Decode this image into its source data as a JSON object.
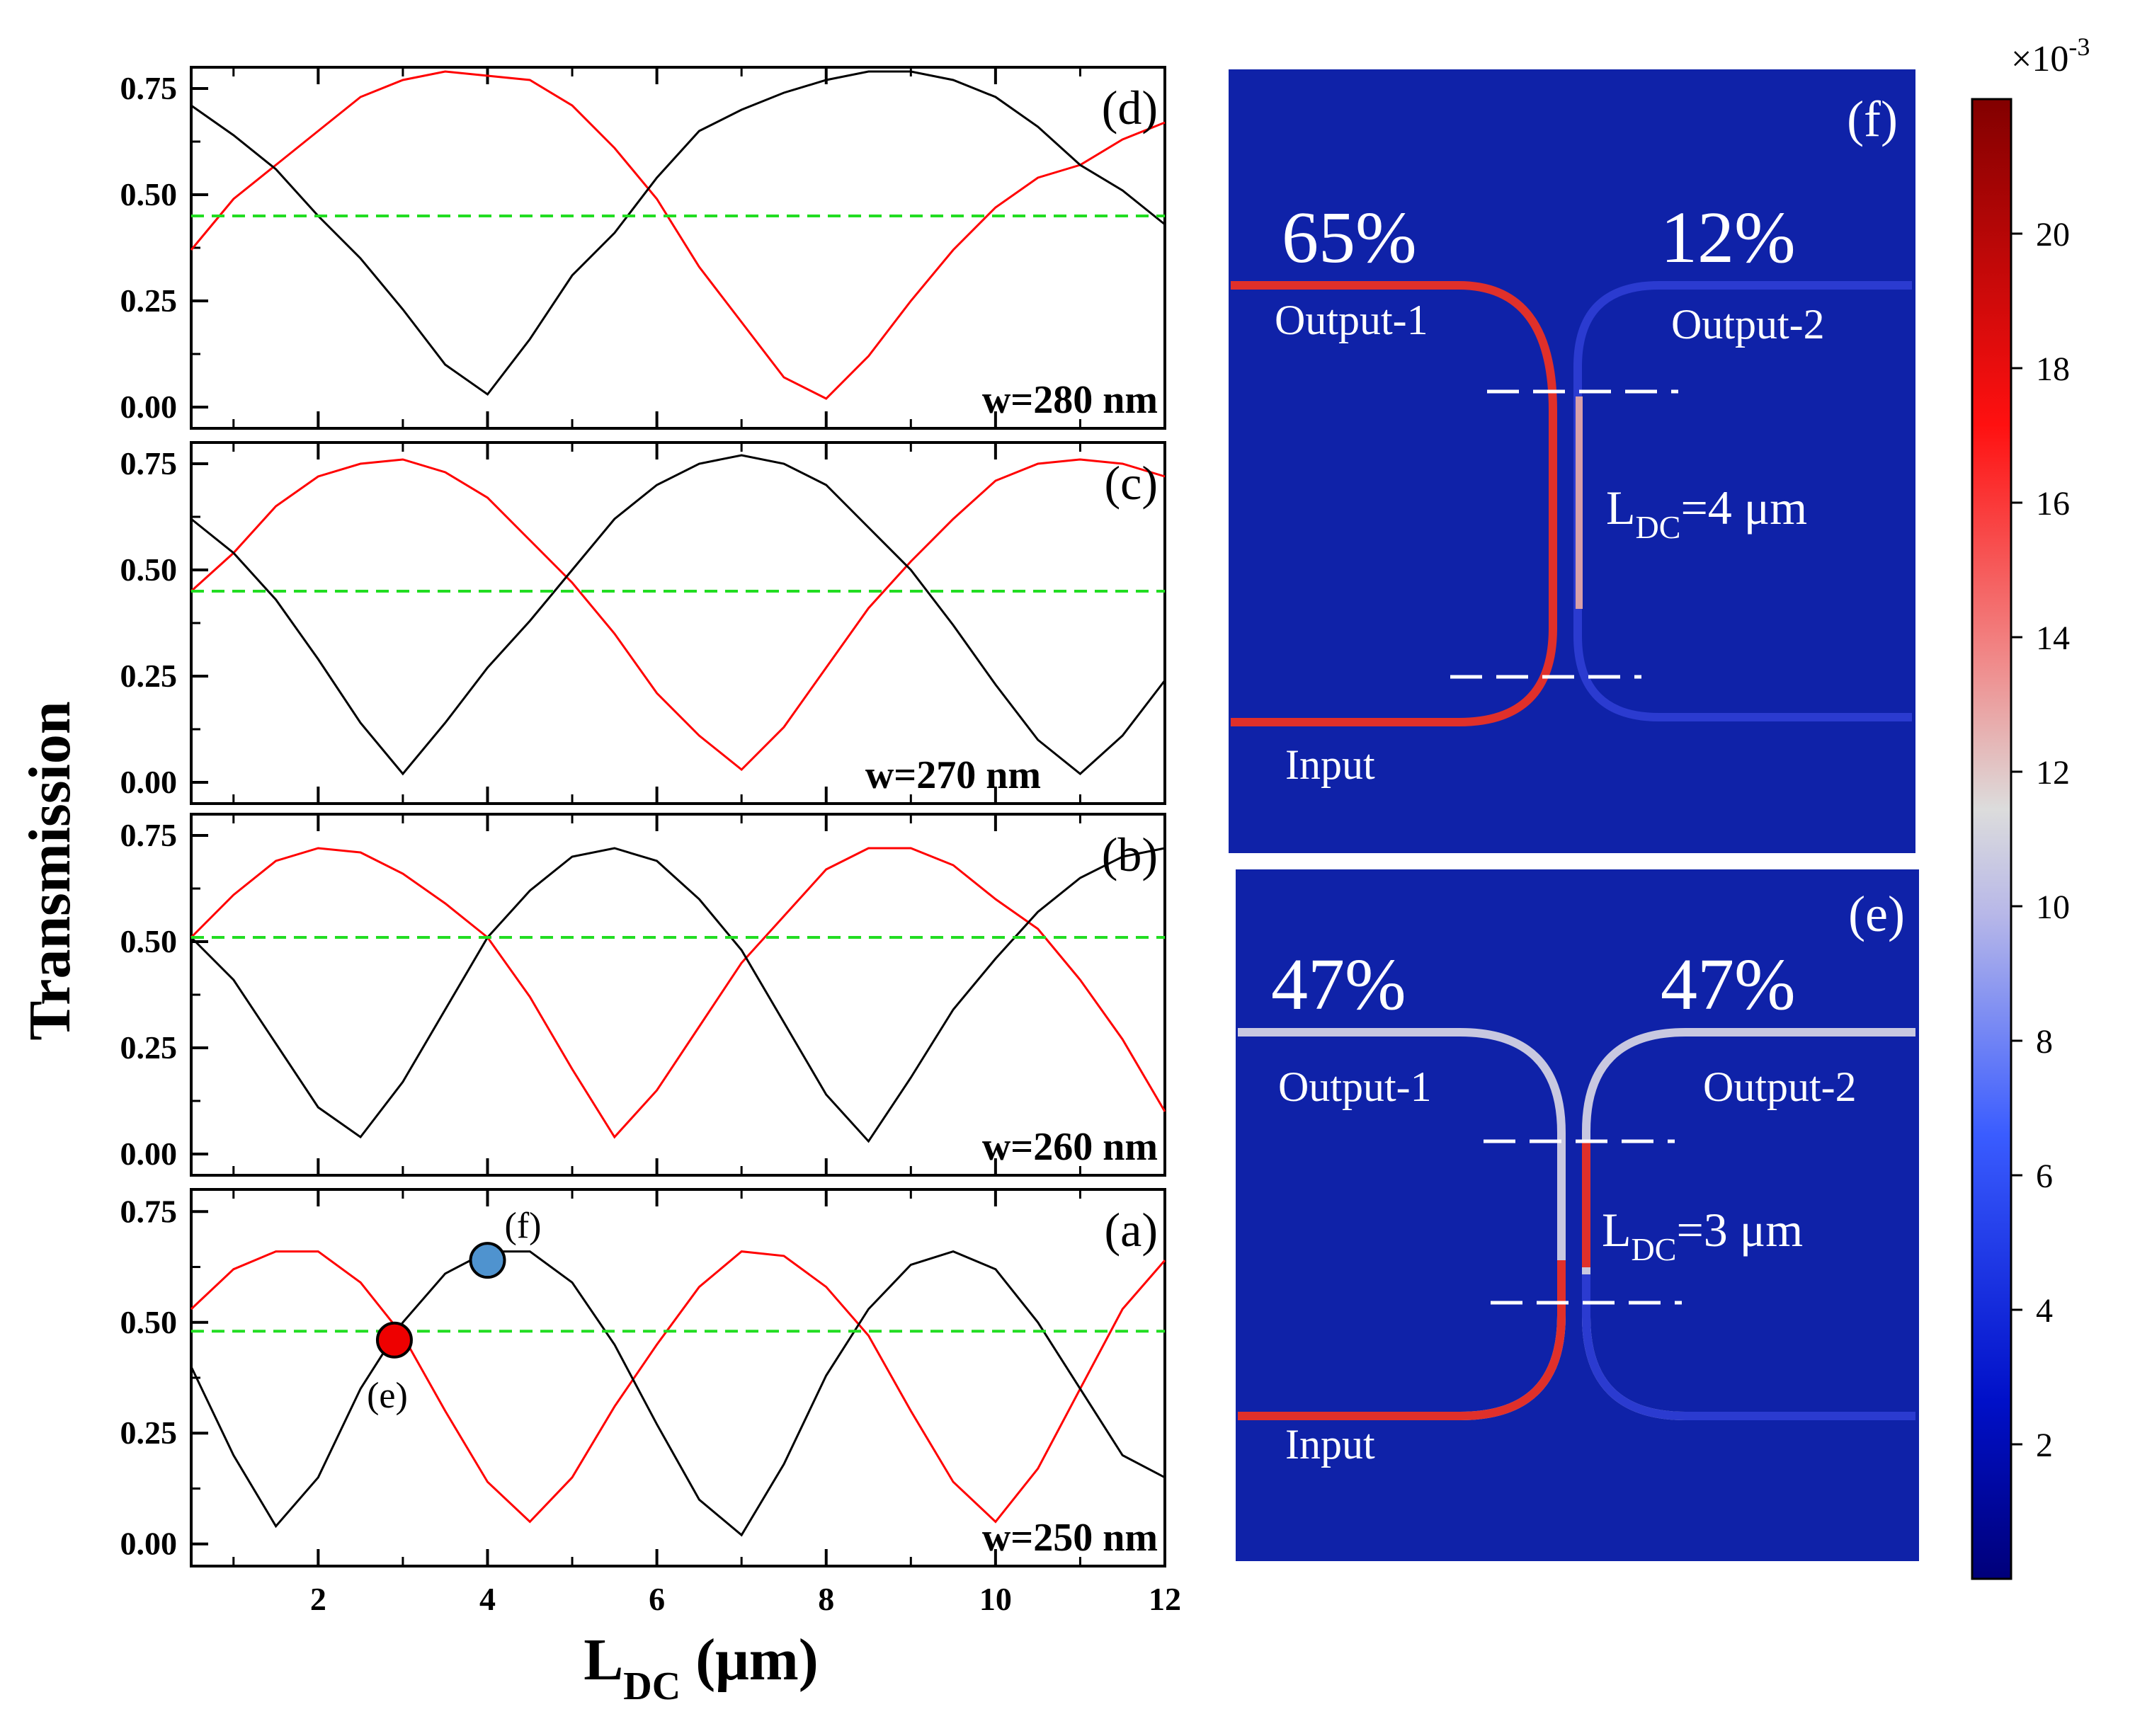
{
  "chart_data": [
    {
      "panel": "(d)",
      "type": "line",
      "annotation": "w=280 nm",
      "xlim": [
        0.5,
        12
      ],
      "ylim": [
        -0.05,
        0.8
      ],
      "yticks": [
        "0.00",
        "0.25",
        "0.50",
        "0.75"
      ],
      "series": [
        {
          "name": "red",
          "color": "#ff0000",
          "x": [
            0.5,
            1,
            1.5,
            2,
            2.5,
            3,
            3.5,
            4,
            4.5,
            5,
            5.5,
            6,
            6.5,
            7,
            7.5,
            8,
            8.5,
            9,
            9.5,
            10,
            10.5,
            11,
            11.5,
            12
          ],
          "y": [
            0.37,
            0.49,
            0.57,
            0.65,
            0.73,
            0.77,
            0.79,
            0.78,
            0.77,
            0.71,
            0.61,
            0.49,
            0.33,
            0.2,
            0.07,
            0.02,
            0.12,
            0.25,
            0.37,
            0.47,
            0.54,
            0.57,
            0.63,
            0.67
          ]
        },
        {
          "name": "black",
          "color": "#000000",
          "x": [
            0.5,
            1,
            1.5,
            2,
            2.5,
            3,
            3.5,
            4,
            4.5,
            5,
            5.5,
            6,
            6.5,
            7,
            7.5,
            8,
            8.5,
            9,
            9.5,
            10,
            10.5,
            11,
            11.5,
            12
          ],
          "y": [
            0.71,
            0.64,
            0.56,
            0.45,
            0.35,
            0.23,
            0.1,
            0.03,
            0.16,
            0.31,
            0.41,
            0.54,
            0.65,
            0.7,
            0.74,
            0.77,
            0.79,
            0.79,
            0.77,
            0.73,
            0.66,
            0.57,
            0.51,
            0.43
          ]
        },
        {
          "name": "reference",
          "color": "#22dd22",
          "dashed": true,
          "x": [
            0.5,
            12
          ],
          "y": [
            0.45,
            0.45
          ]
        }
      ]
    },
    {
      "panel": "(c)",
      "type": "line",
      "annotation": "w=270 nm",
      "xlim": [
        0.5,
        12
      ],
      "ylim": [
        -0.05,
        0.8
      ],
      "yticks": [
        "0.00",
        "0.25",
        "0.50",
        "0.75"
      ],
      "series": [
        {
          "name": "red",
          "color": "#ff0000",
          "x": [
            0.5,
            1,
            1.5,
            2,
            2.5,
            3,
            3.5,
            4,
            4.5,
            5,
            5.5,
            6,
            6.5,
            7,
            7.5,
            8,
            8.5,
            9,
            9.5,
            10,
            10.5,
            11,
            11.5,
            12
          ],
          "y": [
            0.45,
            0.54,
            0.65,
            0.72,
            0.75,
            0.76,
            0.73,
            0.67,
            0.57,
            0.47,
            0.35,
            0.21,
            0.11,
            0.03,
            0.13,
            0.27,
            0.41,
            0.52,
            0.62,
            0.71,
            0.75,
            0.76,
            0.75,
            0.72
          ]
        },
        {
          "name": "black",
          "color": "#000000",
          "x": [
            0.5,
            1,
            1.5,
            2,
            2.5,
            3,
            3.5,
            4,
            4.5,
            5,
            5.5,
            6,
            6.5,
            7,
            7.5,
            8,
            8.5,
            9,
            9.5,
            10,
            10.5,
            11,
            11.5,
            12
          ],
          "y": [
            0.62,
            0.54,
            0.43,
            0.29,
            0.14,
            0.02,
            0.14,
            0.27,
            0.38,
            0.5,
            0.62,
            0.7,
            0.75,
            0.77,
            0.75,
            0.7,
            0.6,
            0.5,
            0.37,
            0.23,
            0.1,
            0.02,
            0.11,
            0.24
          ]
        },
        {
          "name": "reference",
          "color": "#22dd22",
          "dashed": true,
          "x": [
            0.5,
            12
          ],
          "y": [
            0.45,
            0.45
          ]
        }
      ]
    },
    {
      "panel": "(b)",
      "type": "line",
      "annotation": "w=260 nm",
      "xlim": [
        0.5,
        12
      ],
      "ylim": [
        -0.05,
        0.8
      ],
      "yticks": [
        "0.00",
        "0.25",
        "0.50",
        "0.75"
      ],
      "series": [
        {
          "name": "red",
          "color": "#ff0000",
          "x": [
            0.5,
            1,
            1.5,
            2,
            2.5,
            3,
            3.5,
            4,
            4.5,
            5,
            5.5,
            6,
            6.5,
            7,
            7.5,
            8,
            8.5,
            9,
            9.5,
            10,
            10.5,
            11,
            11.5,
            12
          ],
          "y": [
            0.51,
            0.61,
            0.69,
            0.72,
            0.71,
            0.66,
            0.59,
            0.51,
            0.37,
            0.2,
            0.04,
            0.15,
            0.3,
            0.45,
            0.56,
            0.67,
            0.72,
            0.72,
            0.68,
            0.6,
            0.53,
            0.41,
            0.27,
            0.1
          ]
        },
        {
          "name": "black",
          "color": "#000000",
          "x": [
            0.5,
            1,
            1.5,
            2,
            2.5,
            3,
            3.5,
            4,
            4.5,
            5,
            5.5,
            6,
            6.5,
            7,
            7.5,
            8,
            8.5,
            9,
            9.5,
            10,
            10.5,
            11,
            11.5,
            12
          ],
          "y": [
            0.51,
            0.41,
            0.26,
            0.11,
            0.04,
            0.17,
            0.34,
            0.51,
            0.62,
            0.7,
            0.72,
            0.69,
            0.6,
            0.48,
            0.31,
            0.14,
            0.03,
            0.18,
            0.34,
            0.46,
            0.57,
            0.65,
            0.7,
            0.72
          ]
        },
        {
          "name": "reference",
          "color": "#22dd22",
          "dashed": true,
          "x": [
            0.5,
            12
          ],
          "y": [
            0.51,
            0.51
          ]
        }
      ]
    },
    {
      "panel": "(a)",
      "type": "line",
      "annotation": "w=250 nm",
      "xlim": [
        0.5,
        12
      ],
      "ylim": [
        -0.05,
        0.8
      ],
      "yticks": [
        "0.00",
        "0.25",
        "0.50",
        "0.75"
      ],
      "xticks": [
        "2",
        "4",
        "6",
        "8",
        "10",
        "12"
      ],
      "series": [
        {
          "name": "red",
          "color": "#ff0000",
          "x": [
            0.5,
            1,
            1.5,
            2,
            2.5,
            3,
            3.5,
            4,
            4.5,
            5,
            5.5,
            6,
            6.5,
            7,
            7.5,
            8,
            8.5,
            9,
            9.5,
            10,
            10.5,
            11,
            11.5,
            12
          ],
          "y": [
            0.53,
            0.62,
            0.66,
            0.66,
            0.59,
            0.47,
            0.3,
            0.14,
            0.05,
            0.15,
            0.31,
            0.45,
            0.58,
            0.66,
            0.65,
            0.58,
            0.47,
            0.3,
            0.14,
            0.05,
            0.17,
            0.35,
            0.53,
            0.64
          ]
        },
        {
          "name": "black",
          "color": "#000000",
          "x": [
            0.5,
            1,
            1.5,
            2,
            2.5,
            3,
            3.5,
            4,
            4.5,
            5,
            5.5,
            6,
            6.5,
            7,
            7.5,
            8,
            8.5,
            9,
            9.5,
            10,
            10.5,
            11,
            11.5,
            12
          ],
          "y": [
            0.4,
            0.2,
            0.04,
            0.15,
            0.35,
            0.5,
            0.61,
            0.66,
            0.66,
            0.59,
            0.45,
            0.27,
            0.1,
            0.02,
            0.18,
            0.38,
            0.53,
            0.63,
            0.66,
            0.62,
            0.5,
            0.35,
            0.2,
            0.15
          ]
        },
        {
          "name": "reference",
          "color": "#22dd22",
          "dashed": true,
          "x": [
            0.5,
            12
          ],
          "y": [
            0.48,
            0.48
          ]
        }
      ],
      "markers": [
        {
          "label": "(e)",
          "x": 2.9,
          "y": 0.46,
          "color": "#ee0000"
        },
        {
          "label": "(f)",
          "x": 4.0,
          "y": 0.64,
          "color": "#4f93cf"
        }
      ]
    }
  ],
  "axes": {
    "ylabel": "Transmission",
    "xlabel_main": "L",
    "xlabel_sub": "DC",
    "xlabel_unit": " (μm)"
  },
  "fields": {
    "f": {
      "panel": "(f)",
      "pct_left": "65%",
      "pct_right": "12%",
      "label_out1": "Output-1",
      "label_out2": "Output-2",
      "label_input": "Input",
      "ldc_main": "L",
      "ldc_sub": "DC",
      "ldc_value": "=4 μm"
    },
    "e": {
      "panel": "(e)",
      "pct_left": "47%",
      "pct_right": "47%",
      "label_out1": "Output-1",
      "label_out2": "Output-2",
      "label_input": "Input",
      "ldc_main": "L",
      "ldc_sub": "DC",
      "ldc_value": "=3 μm"
    }
  },
  "colorbar": {
    "multiplier_base": "×10",
    "multiplier_exp": "-3",
    "ticks": [
      "2",
      "4",
      "6",
      "8",
      "10",
      "12",
      "14",
      "16",
      "18",
      "20"
    ],
    "tick_values": [
      2,
      4,
      6,
      8,
      10,
      12,
      14,
      16,
      18,
      20
    ],
    "range": [
      0,
      22
    ]
  },
  "colors": {
    "background_field": "#0f22a8",
    "waveguide_hot": "#e0302a",
    "waveguide_mid": "#c8c8e0",
    "waveguide_cold": "#2b3bd0"
  }
}
